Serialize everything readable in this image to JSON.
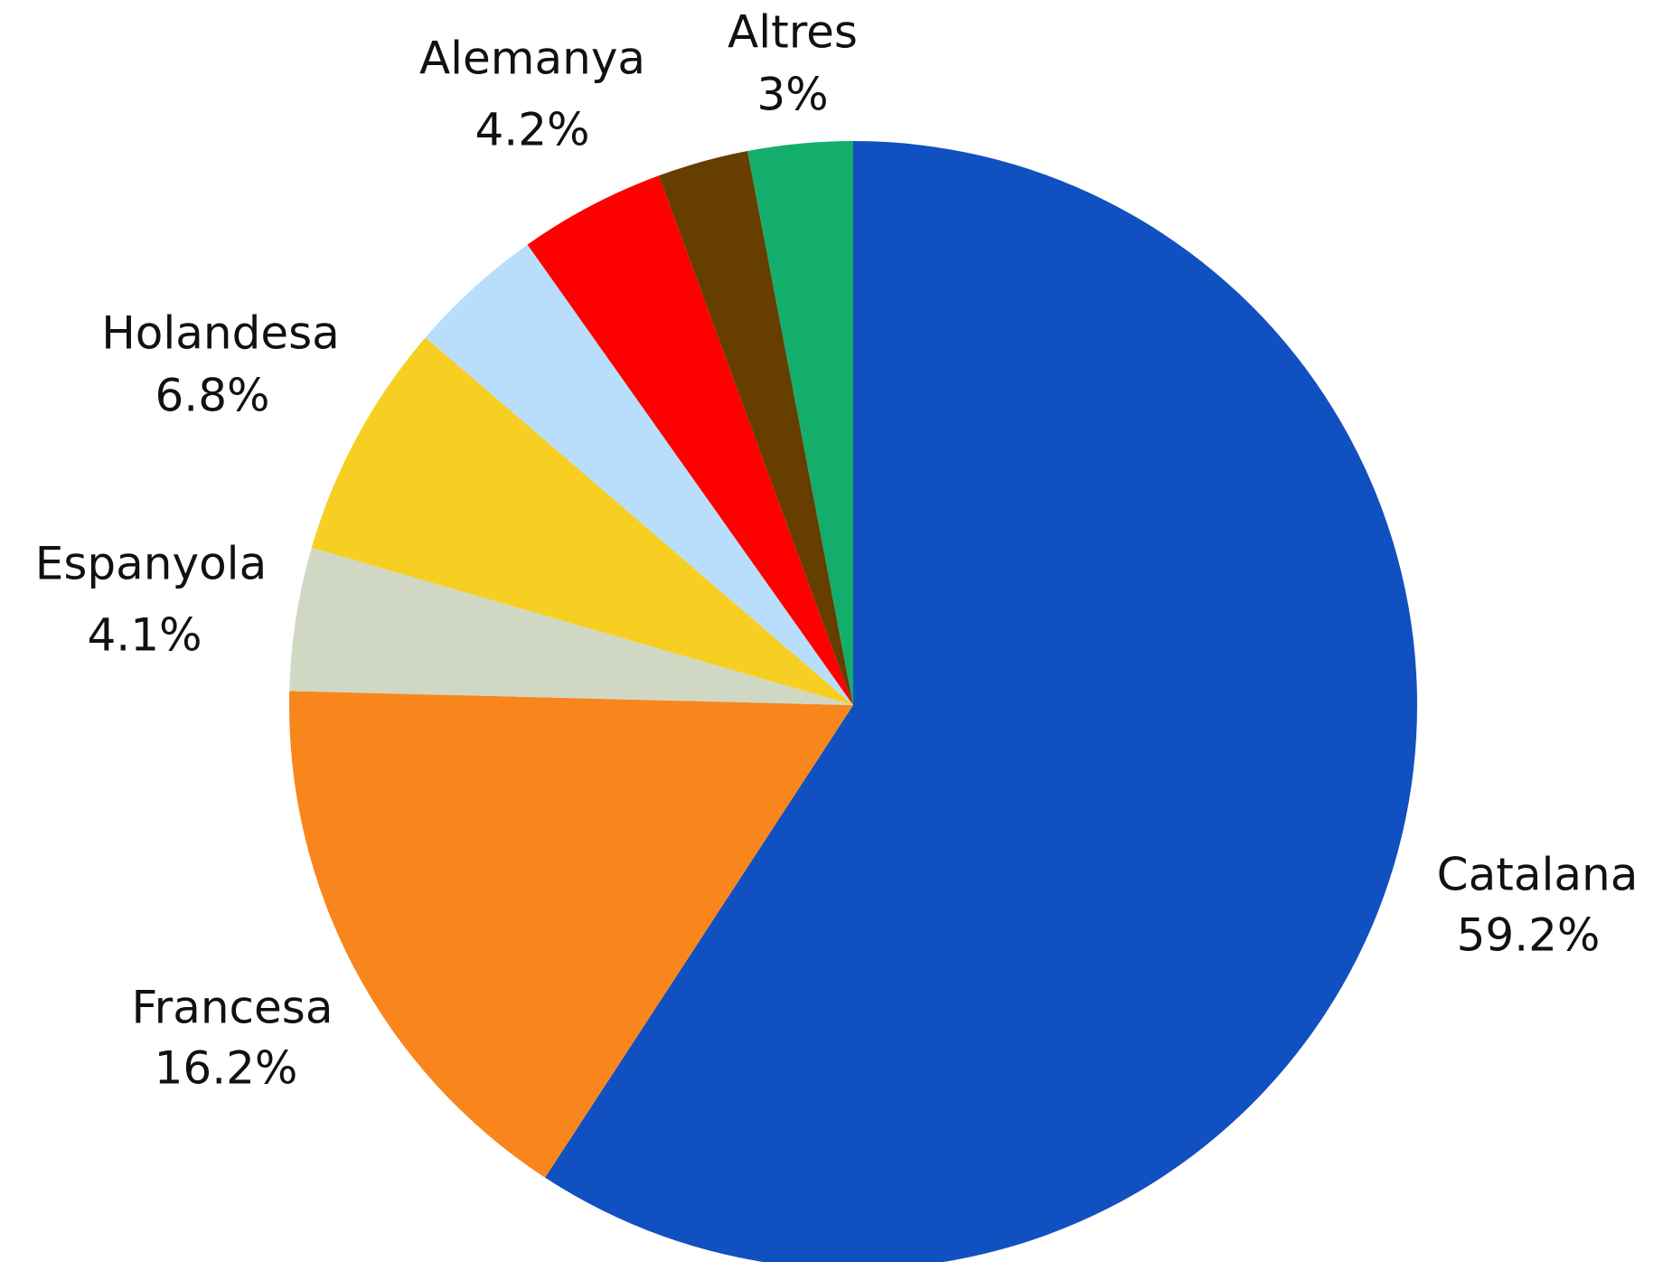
{
  "chart_data": {
    "type": "pie",
    "categories": [
      "Catalana",
      "Francesa",
      "Espanyola",
      "Holandesa",
      null,
      "Alemanya",
      null,
      "Altres"
    ],
    "values": [
      59.2,
      16.2,
      4.1,
      6.8,
      3.9,
      4.2,
      2.6,
      3
    ],
    "value_labels": [
      "59.2%",
      "16.2%",
      "4.1%",
      "6.8%",
      null,
      "4.2%",
      null,
      "3%"
    ],
    "colors": [
      "#1150c0",
      "#f8861d",
      "#d0d8c4",
      "#f6cf22",
      "#b9defc",
      "#ff0000",
      "#663e00",
      "#13ae6b"
    ]
  }
}
